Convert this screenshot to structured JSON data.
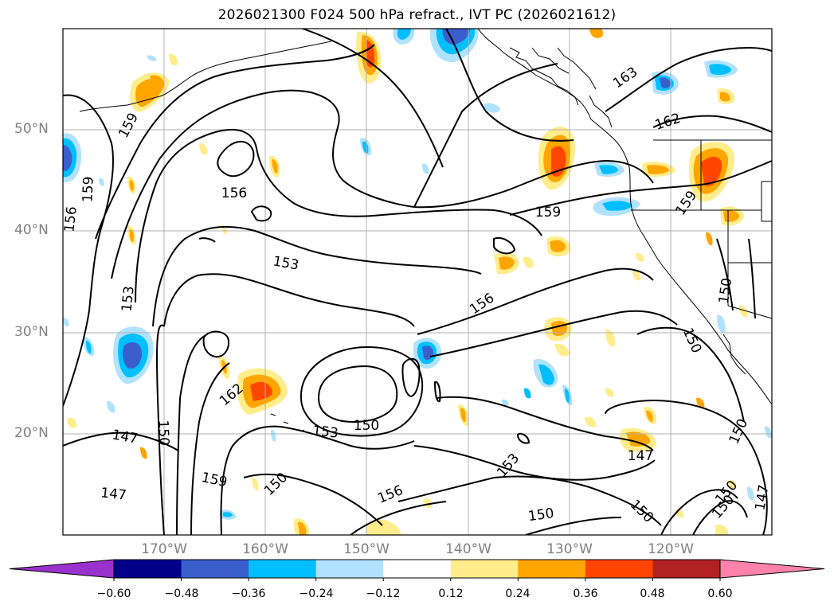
{
  "title": "2026021300 F024 500 hPa refract., IVT PC (2026021612)",
  "map": {
    "projection": "equirectangular",
    "extent": {
      "lon_min": -180,
      "lon_max": -110,
      "lat_min": 10,
      "lat_max": 60
    },
    "lat_labels": [
      "20°N",
      "30°N",
      "40°N",
      "50°N"
    ],
    "lon_labels": [
      "170°W",
      "160°W",
      "150°W",
      "140°W",
      "130°W",
      "120°W"
    ],
    "grid": true,
    "contour_labels": [
      "159",
      "159",
      "156",
      "156",
      "153",
      "153",
      "156",
      "162",
      "147",
      "150",
      "153",
      "150",
      "159",
      "153",
      "156",
      "147",
      "150",
      "150",
      "150",
      "147",
      "147",
      "159",
      "163",
      "162",
      "159",
      "150",
      "150",
      "150",
      "150",
      "150"
    ]
  },
  "colorbar": {
    "ticks": [
      "−0.60",
      "−0.48",
      "−0.36",
      "−0.24",
      "−0.12",
      "0.12",
      "0.24",
      "0.36",
      "0.48",
      "0.60"
    ],
    "colors": [
      "#9932cc",
      "#00008b",
      "#3a5fcd",
      "#00bfff",
      "#b0e2ff",
      "#ffffff",
      "#ffec8b",
      "#ffa500",
      "#ff4500",
      "#b22222",
      "#ff82ab"
    ]
  }
}
